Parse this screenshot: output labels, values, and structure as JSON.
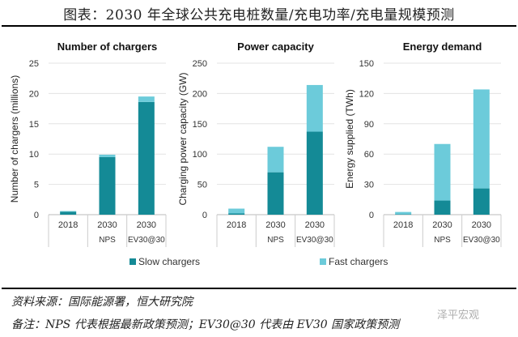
{
  "title": "图表：2030 年全球公共充电桩数量/充电功率/充电量规模预测",
  "colors": {
    "slow": "#148a96",
    "fast": "#6ccbda"
  },
  "legend": [
    {
      "label": "Slow chargers",
      "color": "#148a96"
    },
    {
      "label": "Fast chargers",
      "color": "#6ccbda"
    }
  ],
  "chart_data": [
    {
      "type": "bar",
      "stacked": true,
      "title": "Number of chargers",
      "ylabel": "Number of chargers (millions)",
      "ylim": [
        0,
        25
      ],
      "yticks": [
        0,
        5,
        10,
        15,
        20,
        25
      ],
      "grid": true,
      "categories": [
        [
          "2018",
          ""
        ],
        [
          "2030",
          "NPS"
        ],
        [
          "2030",
          "EV30@30"
        ]
      ],
      "series": [
        {
          "name": "Slow chargers",
          "values": [
            0.5,
            9.5,
            18.6
          ]
        },
        {
          "name": "Fast chargers",
          "values": [
            0.1,
            0.4,
            0.9
          ]
        }
      ]
    },
    {
      "type": "bar",
      "stacked": true,
      "title": "Power capacity",
      "ylabel": "Charging power capacity (GW)",
      "ylim": [
        0,
        250
      ],
      "yticks": [
        0,
        50,
        100,
        150,
        200,
        250
      ],
      "grid": true,
      "categories": [
        [
          "2018",
          ""
        ],
        [
          "2030",
          "NPS"
        ],
        [
          "2030",
          "EV30@30"
        ]
      ],
      "series": [
        {
          "name": "Slow chargers",
          "values": [
            2,
            70,
            137
          ]
        },
        {
          "name": "Fast chargers",
          "values": [
            8,
            42,
            77
          ]
        }
      ]
    },
    {
      "type": "bar",
      "stacked": true,
      "title": "Energy demand",
      "ylabel": "Energy supplied (TWh)",
      "ylim": [
        0,
        150
      ],
      "yticks": [
        0,
        30,
        60,
        90,
        120,
        150
      ],
      "grid": true,
      "categories": [
        [
          "2018",
          ""
        ],
        [
          "2030",
          "NPS"
        ],
        [
          "2030",
          "EV30@30"
        ]
      ],
      "series": [
        {
          "name": "Slow chargers",
          "values": [
            0.5,
            14,
            26
          ]
        },
        {
          "name": "Fast chargers",
          "values": [
            2.2,
            56,
            98
          ]
        }
      ]
    }
  ],
  "source": "资料来源：国际能源署，恒大研究院",
  "note": "备注：NPS 代表根据最新政策预测；EV30@30 代表由 EV30 国家政策预测",
  "watermark": "泽平宏观"
}
